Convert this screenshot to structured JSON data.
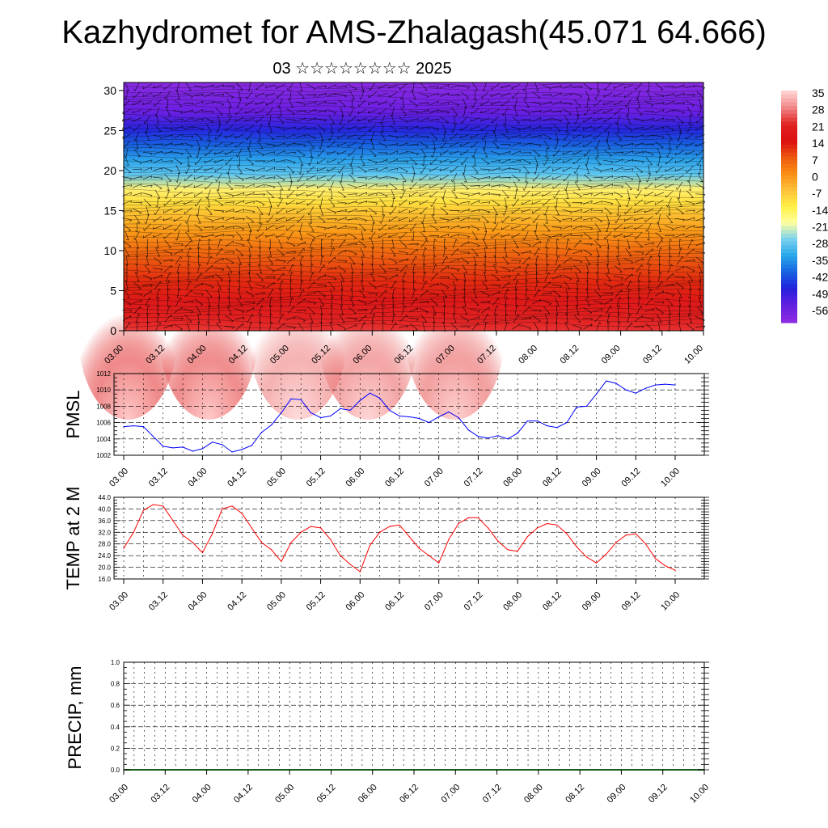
{
  "header": {
    "title": "Kazhydromet for AMS-Zhalagash(45.071 64.666)",
    "subtitle": "03 ☆☆☆☆☆☆☆☆ 2025"
  },
  "chart_data": [
    {
      "type": "heatmap",
      "name": "cross-section",
      "x_tick_labels": [
        "03.00",
        "03.12",
        "04.00",
        "04.12",
        "05.00",
        "05.12",
        "06.00",
        "06.12",
        "07.00",
        "07.12",
        "08.00",
        "08.12",
        "09.00",
        "09.12",
        "10.00"
      ],
      "y_ticks": [
        0,
        5,
        10,
        15,
        20,
        25,
        30
      ],
      "ylim": [
        0,
        31
      ],
      "colorbar_labels": [
        "35",
        "28",
        "21",
        "14",
        "7",
        "0",
        "-7",
        "-14",
        "-21",
        "-28",
        "-35",
        "-42",
        "-49",
        "-56"
      ],
      "color_stops": [
        "#ffd0d0",
        "#f08080",
        "#e02020",
        "#dd1010",
        "#ee5a10",
        "#fa8f14",
        "#fdc23a",
        "#fff045",
        "#ffffa0",
        "#7ad2f0",
        "#29a8ea",
        "#1764e2",
        "#2222dd",
        "#6020e0",
        "#8a2be2"
      ],
      "hotspots": [
        {
          "x": 0.1,
          "y": 1.5,
          "peak": 37
        },
        {
          "x": 2.05,
          "y": 1.5,
          "peak": 36
        },
        {
          "x": 8.0,
          "y": 1.5,
          "peak": 30
        },
        {
          "x": 5.9,
          "y": 1.5,
          "peak": 28
        },
        {
          "x": 4.2,
          "y": 1.5,
          "peak": 24
        }
      ],
      "vectors": "wind-barbs"
    },
    {
      "type": "line",
      "name": "pmsl",
      "ylabel": "PMSL",
      "ylim": [
        1002,
        1012
      ],
      "y_tick_labels": [
        "1002",
        "1004",
        "1006",
        "1008",
        "1010",
        "1012"
      ],
      "x_tick_labels": [
        "03.00",
        "03.12",
        "04.00",
        "04.12",
        "05.00",
        "05.12",
        "06.00",
        "06.12",
        "07.00",
        "07.12",
        "08.00",
        "08.12",
        "09.00",
        "09.12",
        "10.00"
      ],
      "color": "#0000ff",
      "x": [
        0,
        1,
        2,
        3,
        4,
        5,
        6,
        7,
        8,
        9,
        10,
        11,
        12,
        13,
        14,
        15,
        16,
        17,
        18,
        19,
        20,
        21,
        22,
        23,
        24,
        25,
        26,
        27,
        28,
        29,
        30,
        31,
        32,
        33,
        34,
        35,
        36,
        37,
        38,
        39,
        40,
        41,
        42,
        43,
        44,
        45,
        46,
        47,
        48,
        49,
        50,
        51,
        52,
        53,
        54,
        55,
        56
      ],
      "values": [
        1005.5,
        1005.6,
        1005.5,
        1004.3,
        1003.1,
        1002.9,
        1003.0,
        1002.5,
        1002.8,
        1003.6,
        1003.3,
        1002.4,
        1002.7,
        1003.2,
        1004.8,
        1005.7,
        1007.2,
        1008.9,
        1008.8,
        1007.2,
        1006.6,
        1006.8,
        1007.7,
        1007.5,
        1008.7,
        1009.6,
        1009.0,
        1007.5,
        1006.8,
        1006.7,
        1006.5,
        1006.0,
        1006.7,
        1007.3,
        1006.6,
        1005.1,
        1004.3,
        1004.1,
        1004.4,
        1004.0,
        1004.7,
        1006.2,
        1006.2,
        1005.6,
        1005.4,
        1006.0,
        1007.9,
        1008.0,
        1009.5,
        1011.1,
        1010.8,
        1010.0,
        1009.6,
        1010.2,
        1010.6,
        1010.7,
        1010.6
      ]
    },
    {
      "type": "line",
      "name": "temp2m",
      "ylabel": "TEMP at 2 M",
      "ylim": [
        16,
        44
      ],
      "y_tick_labels": [
        "16.0",
        "20.0",
        "24.0",
        "28.0",
        "32.0",
        "36.0",
        "40.0",
        "44.0"
      ],
      "x_tick_labels": [
        "03.00",
        "03.12",
        "04.00",
        "04.12",
        "05.00",
        "05.12",
        "06.00",
        "06.12",
        "07.00",
        "07.12",
        "08.00",
        "08.12",
        "09.00",
        "09.12",
        "10.00"
      ],
      "color": "#ff0000",
      "x": [
        0,
        1,
        2,
        3,
        4,
        5,
        6,
        7,
        8,
        9,
        10,
        11,
        12,
        13,
        14,
        15,
        16,
        17,
        18,
        19,
        20,
        21,
        22,
        23,
        24,
        25,
        26,
        27,
        28,
        29,
        30,
        31,
        32,
        33,
        34,
        35,
        36,
        37,
        38,
        39,
        40,
        41,
        42,
        43,
        44,
        45,
        46,
        47,
        48,
        49,
        50,
        51,
        52,
        53,
        54,
        55,
        56
      ],
      "values": [
        26.5,
        32.0,
        39.5,
        41.5,
        41.0,
        36.0,
        31.0,
        28.5,
        25.0,
        31.5,
        40.0,
        41.0,
        38.5,
        33.5,
        28.5,
        26.0,
        22.0,
        28.5,
        32.0,
        34.0,
        33.5,
        29.5,
        24.0,
        21.0,
        18.5,
        27.5,
        32.0,
        34.0,
        34.5,
        30.5,
        26.5,
        24.0,
        21.5,
        29.5,
        35.0,
        37.0,
        37.0,
        33.5,
        29.0,
        26.0,
        25.5,
        30.5,
        33.5,
        35.0,
        34.5,
        31.5,
        27.0,
        23.5,
        21.5,
        24.5,
        28.5,
        31.0,
        31.5,
        28.0,
        23.0,
        20.5,
        19.0
      ]
    },
    {
      "type": "bar",
      "name": "precip",
      "ylabel": "PRECIP, mm",
      "ylim": [
        0,
        1
      ],
      "y_tick_labels": [
        "0.0",
        "0.2",
        "0.4",
        "0.6",
        "0.8",
        "1.0"
      ],
      "x_tick_labels": [
        "03.00",
        "03.12",
        "04.00",
        "04.12",
        "05.00",
        "05.12",
        "06.00",
        "06.12",
        "07.00",
        "07.12",
        "08.00",
        "08.12",
        "09.00",
        "09.12",
        "10.00"
      ],
      "values": []
    }
  ]
}
